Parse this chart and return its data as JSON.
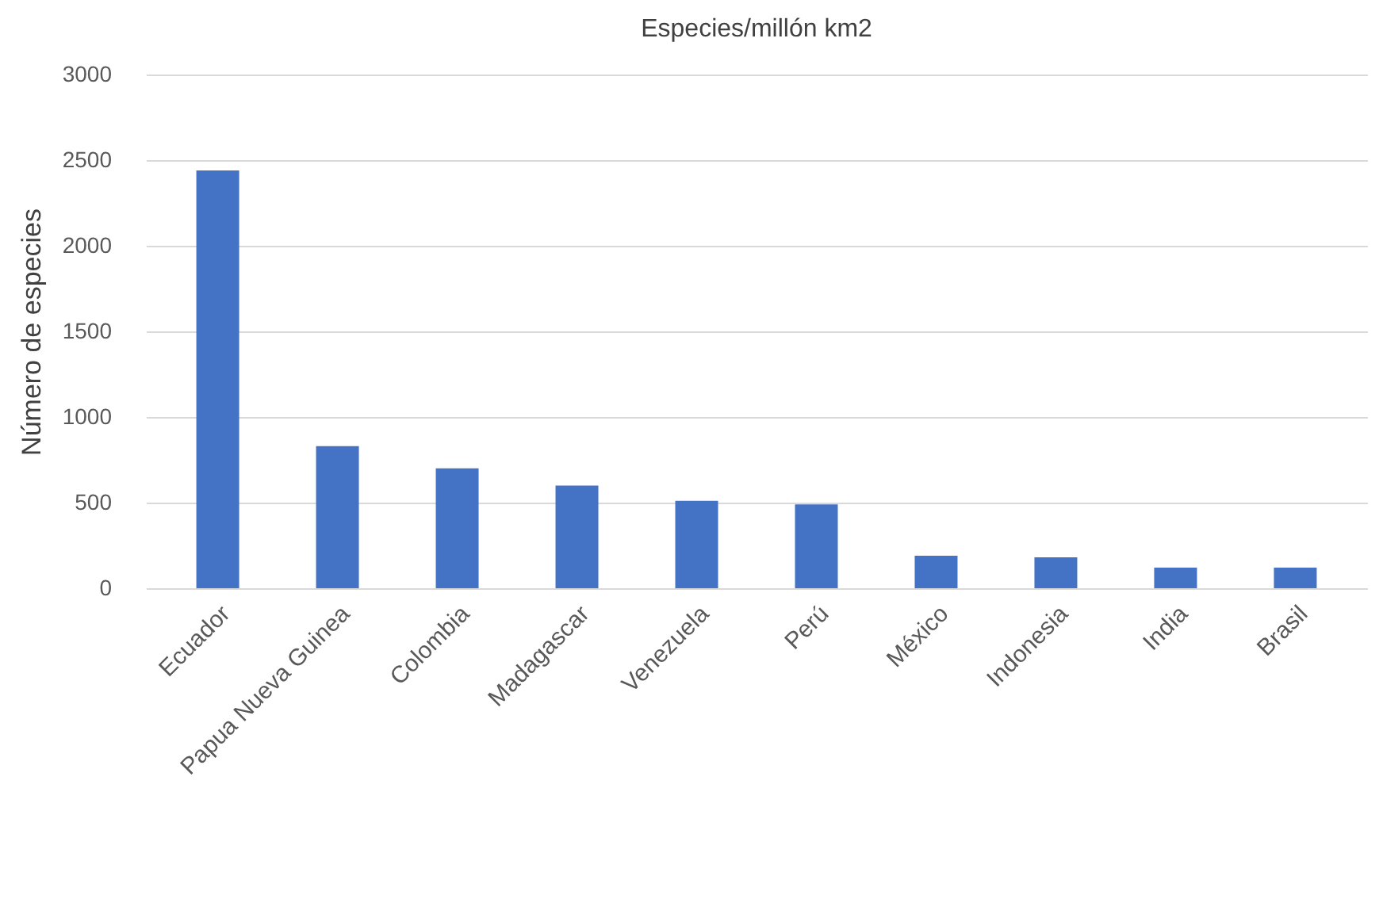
{
  "chart_data": {
    "type": "bar",
    "title": "Especies/millón km2",
    "ylabel": "Número de especies",
    "categories": [
      "Ecuador",
      "Papua Nueva Guinea",
      "Colombia",
      "Madagascar",
      "Venezuela",
      "Perú",
      "México",
      "Indonesia",
      "India",
      "Brasil"
    ],
    "values": [
      2440,
      830,
      700,
      600,
      510,
      490,
      190,
      180,
      120,
      120
    ],
    "color": "#4472c4",
    "ylim": [
      0,
      3000
    ],
    "yticks": [
      0,
      500,
      1000,
      1500,
      2000,
      2500,
      3000
    ],
    "grid": "y"
  }
}
